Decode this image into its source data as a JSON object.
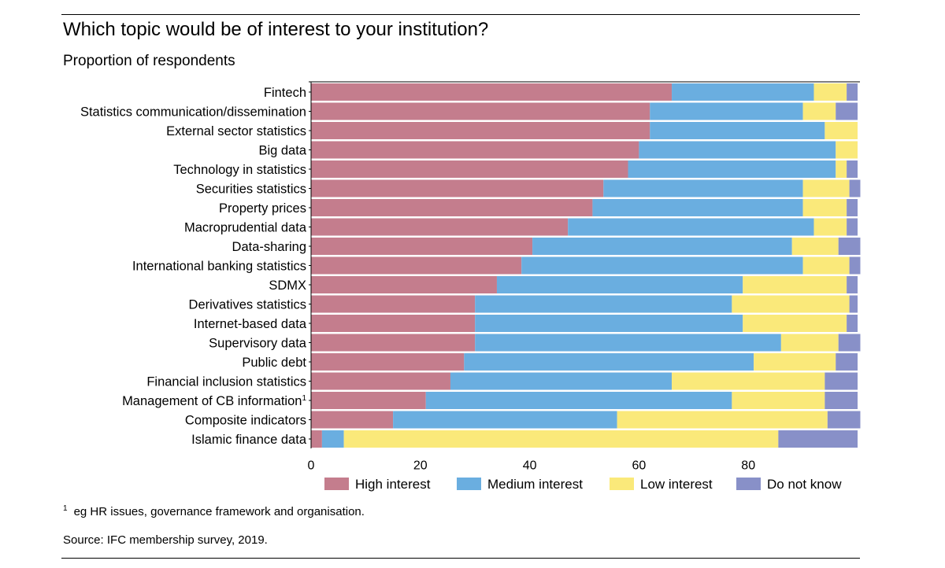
{
  "chart_data": {
    "type": "bar",
    "orientation": "horizontal",
    "stacked": true,
    "title": "Which topic would be of interest to your institution?",
    "subtitle": "Proportion of respondents",
    "xlabel": "",
    "ylabel": "",
    "xlim": [
      0,
      100
    ],
    "xticks": [
      0,
      20,
      40,
      60,
      80
    ],
    "grid": false,
    "legend_position": "bottom",
    "categories": [
      "Fintech",
      "Statistics communication/dissemination",
      "External sector statistics",
      "Big data",
      "Technology in statistics",
      "Securities statistics",
      "Property prices",
      "Macroprudential data",
      "Data-sharing",
      "International banking statistics",
      "SDMX",
      "Derivatives statistics",
      "Internet-based data",
      "Supervisory data",
      "Public debt",
      "Financial inclusion statistics",
      "Management of CB information",
      "Composite indicators",
      "Islamic finance data"
    ],
    "category_footnote_marks": [
      "",
      "",
      "",
      "",
      "",
      "",
      "",
      "",
      "",
      "",
      "",
      "",
      "",
      "",
      "",
      "",
      "1",
      "",
      ""
    ],
    "series": [
      {
        "name": "High interest",
        "color": "#c47d8d",
        "values": [
          66,
          62,
          62,
          60,
          58,
          53.5,
          51.5,
          47,
          40.5,
          38.5,
          34,
          30,
          30,
          30,
          28,
          25.5,
          21,
          15,
          2
        ]
      },
      {
        "name": "Medium interest",
        "color": "#6aaee0",
        "values": [
          26,
          28,
          32,
          36,
          38,
          36.5,
          38.5,
          45,
          47.5,
          51.5,
          45,
          47,
          49,
          56,
          53,
          40.5,
          56,
          41,
          4
        ]
      },
      {
        "name": "Low interest",
        "color": "#fae97a",
        "values": [
          6,
          6,
          6,
          4,
          2,
          8.5,
          8,
          6,
          8.5,
          8.5,
          19,
          21.5,
          19,
          10.5,
          15,
          28,
          17,
          38.5,
          79.5
        ]
      },
      {
        "name": "Do not know",
        "color": "#8890c8",
        "values": [
          2,
          4,
          0,
          0,
          2,
          2,
          2,
          2,
          4,
          2,
          2,
          1.5,
          2,
          4,
          4,
          6,
          6,
          6,
          14.5
        ]
      }
    ]
  },
  "footnote": {
    "mark": "1",
    "text": "eg HR issues, governance framework and organisation."
  },
  "source": "Source: IFC membership survey, 2019."
}
